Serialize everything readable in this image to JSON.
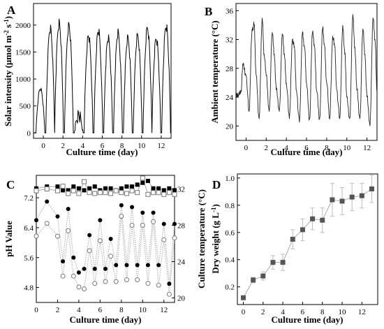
{
  "chart_data": [
    {
      "type": "line",
      "panel_label": "A",
      "xlabel": "Culture time (day)",
      "ylabel_main": "Solar intensity (μmol m",
      "ylabel_sup1": "-2",
      "ylabel_mid": " s",
      "ylabel_sup2": "-1",
      "ylabel_end": ")",
      "xlim": [
        -1,
        13
      ],
      "ylim": [
        -100,
        2400
      ],
      "xticks": [
        0,
        2,
        4,
        6,
        8,
        10,
        12
      ],
      "yticks": [
        0,
        500,
        1000,
        1500,
        2000
      ],
      "daily_peaks": [
        {
          "day": -0.3,
          "peak": 870
        },
        {
          "day": 0.7,
          "peak": 2050
        },
        {
          "day": 1.6,
          "peak": 2150
        },
        {
          "day": 2.6,
          "peak": 2100
        },
        {
          "day": 3.6,
          "peak": 480
        },
        {
          "day": 4.6,
          "peak": 1900
        },
        {
          "day": 5.6,
          "peak": 2000
        },
        {
          "day": 6.6,
          "peak": 1850
        },
        {
          "day": 7.6,
          "peak": 1950
        },
        {
          "day": 8.6,
          "peak": 1850
        },
        {
          "day": 9.6,
          "peak": 1900
        },
        {
          "day": 10.6,
          "peak": 2050
        },
        {
          "day": 11.5,
          "peak": 1850
        },
        {
          "day": 12.5,
          "peak": 2100
        }
      ]
    },
    {
      "type": "line",
      "panel_label": "B",
      "xlabel": "Culture time (day)",
      "ylabel": "Ambient temperature (°C)",
      "xlim": [
        -1,
        13
      ],
      "ylim": [
        18,
        37
      ],
      "xticks": [
        0,
        2,
        4,
        6,
        8,
        10,
        12
      ],
      "yticks": [
        20,
        24,
        28,
        32,
        36
      ],
      "x": [
        -1,
        -0.8,
        -0.5,
        -0.3,
        0,
        0.3,
        0.6,
        0.8,
        1,
        1.3,
        1.6,
        1.8,
        2,
        2.3,
        2.6,
        2.8,
        3,
        3.3,
        3.6,
        3.8,
        4,
        4.3,
        4.6,
        4.8,
        5,
        5.3,
        5.6,
        5.8,
        6,
        6.3,
        6.6,
        6.8,
        7,
        7.3,
        7.6,
        7.8,
        8,
        8.3,
        8.6,
        8.8,
        9,
        9.3,
        9.6,
        9.8,
        10,
        10.3,
        10.6,
        10.8,
        11,
        11.3,
        11.6,
        11.8,
        12,
        12.3,
        12.6,
        12.8,
        13
      ],
      "y": [
        24,
        24.3,
        25,
        28.5,
        27,
        22,
        33.5,
        34,
        27,
        21,
        35,
        30,
        27,
        22,
        33,
        30,
        25,
        22,
        32.8,
        30,
        26,
        21,
        32,
        31,
        25,
        20.5,
        33,
        31,
        26,
        21,
        33,
        31,
        25,
        21,
        33.5,
        31,
        26,
        21,
        32.5,
        31,
        25,
        21,
        34,
        30,
        24,
        21,
        35.5,
        31,
        25,
        21,
        33.5,
        30,
        24,
        20,
        35,
        32,
        25
      ]
    },
    {
      "type": "scatter",
      "panel_label": "C",
      "xlabel": "Culture time (day)",
      "ylabel": "pH Value",
      "y2label": "Culture temperature (°C)",
      "xlim": [
        0,
        13
      ],
      "ylim": [
        4.4,
        7.8
      ],
      "y2lim": [
        19.5,
        33.5
      ],
      "xticks": [
        0,
        2,
        4,
        6,
        8,
        10,
        12
      ],
      "yticks": [
        4.8,
        5.6,
        6.4,
        7.2
      ],
      "y2ticks": [
        20,
        24,
        28,
        32
      ],
      "x": [
        0,
        1,
        2,
        2.5,
        3,
        3.5,
        4,
        4.5,
        5,
        5.5,
        6,
        6.5,
        7,
        7.5,
        8,
        8.5,
        9,
        9.5,
        10,
        10.5,
        11,
        11.5,
        12,
        12.5,
        13
      ],
      "series": [
        {
          "name": "",
          "axis": "left",
          "marker": "filled-square",
          "values": [
            7.45,
            7.5,
            7.5,
            7.4,
            7.4,
            7.5,
            7.45,
            7.4,
            7.45,
            7.5,
            7.4,
            7.45,
            7.45,
            7.4,
            7.45,
            7.5,
            7.5,
            7.55,
            7.6,
            7.65,
            7.45,
            7.45,
            7.4,
            7.45,
            7.4
          ]
        },
        {
          "name": "",
          "axis": "right",
          "marker": "open-square",
          "values": [
            31.8,
            32,
            31.8,
            32.3,
            31.5,
            31.8,
            31.5,
            32.8,
            31.6,
            31.5,
            31.6,
            31.6,
            31.5,
            31.8,
            31.6,
            31.5,
            31.8,
            31.6,
            33.2,
            31.4,
            31.6,
            31.6,
            31.4,
            31.6,
            31.4
          ]
        },
        {
          "name": "",
          "axis": "left",
          "marker": "filled-circle",
          "values": [
            6.6,
            7.1,
            6.7,
            5.5,
            6.9,
            5.6,
            5.2,
            5.3,
            6.2,
            5.3,
            6.6,
            5.3,
            6.1,
            5.4,
            7.0,
            5.4,
            6.95,
            5.4,
            6.8,
            5.4,
            6.8,
            5.4,
            6.5,
            4.9,
            6.5
          ]
        },
        {
          "name": "",
          "axis": "right",
          "marker": "open-circle",
          "values": [
            26.8,
            28.2,
            26.8,
            22.4,
            27.4,
            22.4,
            21.2,
            21.0,
            25.2,
            21.6,
            26.3,
            21.8,
            24.6,
            21.8,
            29.0,
            22.0,
            28.0,
            22.0,
            28.0,
            21.6,
            28.4,
            21.4,
            26.4,
            20.4,
            26.6
          ]
        }
      ]
    },
    {
      "type": "scatter",
      "panel_label": "D",
      "xlabel": "Culture time (day)",
      "ylabel_main": "Dry weight (g L",
      "ylabel_sup": "-1",
      "ylabel_end": ")",
      "xlim": [
        -0.6,
        13.6
      ],
      "ylim": [
        0.07,
        1.03
      ],
      "xticks": [
        0,
        2,
        4,
        6,
        8,
        10,
        12
      ],
      "yticks": [
        0.2,
        0.4,
        0.6,
        0.8,
        1.0
      ],
      "x": [
        0,
        1,
        2,
        3,
        4,
        5,
        6,
        7,
        8,
        9,
        10,
        11,
        12,
        13
      ],
      "values": [
        0.12,
        0.25,
        0.28,
        0.38,
        0.38,
        0.55,
        0.62,
        0.7,
        0.69,
        0.84,
        0.83,
        0.86,
        0.87,
        0.92
      ],
      "errors": [
        0.01,
        0.02,
        0.03,
        0.05,
        0.06,
        0.07,
        0.08,
        0.08,
        0.09,
        0.12,
        0.1,
        0.1,
        0.09,
        0.1
      ]
    }
  ]
}
